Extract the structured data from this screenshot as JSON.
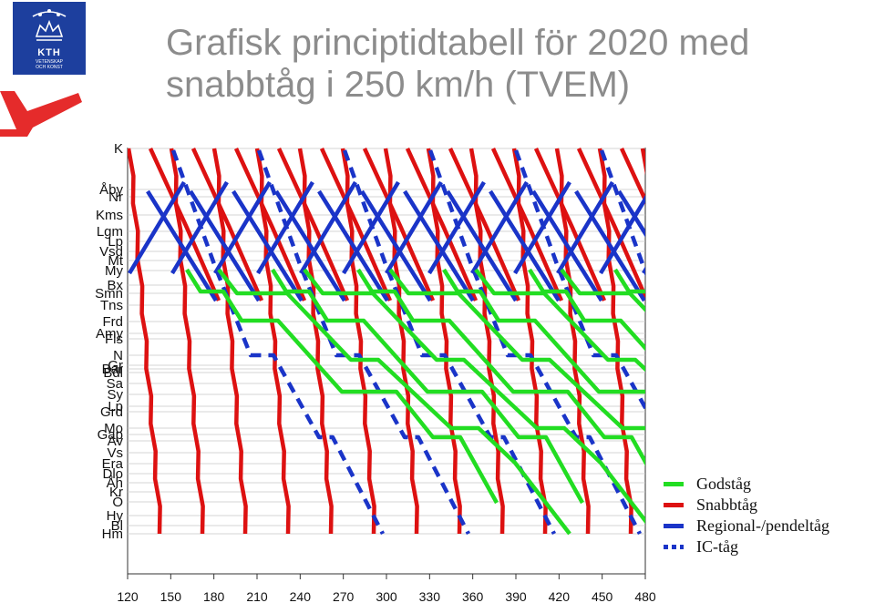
{
  "header": {
    "logo_text": "KTH",
    "logo_sub1": "VETENSKAP",
    "logo_sub2": "OCH KONST",
    "title_line1": "Grafisk principtidtabell för 2020 med",
    "title_line2": "snabbtåg i 250 km/h (TVEM)"
  },
  "colors": {
    "godstag": "#22dd22",
    "snabbtag": "#dd1111",
    "regional": "#1a34c8",
    "ic": "#1a34c8",
    "logo_blue": "#1d3f9e",
    "logo_v_red": "#e52b2b"
  },
  "chart_data": {
    "type": "line",
    "title": "Grafisk principtidtabell för 2020 med snabbtåg i 250 km/h (TVEM)",
    "x_ticks": [
      120,
      150,
      180,
      210,
      240,
      270,
      300,
      330,
      360,
      390,
      420,
      450,
      480
    ],
    "xlim": [
      120,
      480
    ],
    "stations": [
      {
        "name": "K",
        "pos": 0
      },
      {
        "name": "Åby",
        "pos": 45
      },
      {
        "name": "Nr",
        "pos": 53
      },
      {
        "name": "Kms",
        "pos": 73
      },
      {
        "name": "Lgm",
        "pos": 91
      },
      {
        "name": "Lp",
        "pos": 102
      },
      {
        "name": "Vsd",
        "pos": 113
      },
      {
        "name": "Mt",
        "pos": 123
      },
      {
        "name": "My",
        "pos": 134
      },
      {
        "name": "Bx",
        "pos": 150
      },
      {
        "name": "Smn",
        "pos": 159
      },
      {
        "name": "Tns",
        "pos": 172
      },
      {
        "name": "Frd",
        "pos": 190
      },
      {
        "name": "Amy",
        "pos": 203
      },
      {
        "name": "Fls",
        "pos": 209
      },
      {
        "name": "N",
        "pos": 227
      },
      {
        "name": "Gr",
        "pos": 238
      },
      {
        "name": "Bar",
        "pos": 242
      },
      {
        "name": "Bdl",
        "pos": 246
      },
      {
        "name": "Sa",
        "pos": 258
      },
      {
        "name": "Sy",
        "pos": 270
      },
      {
        "name": "Lp",
        "pos": 283
      },
      {
        "name": "Grd",
        "pos": 289
      },
      {
        "name": "Mo",
        "pos": 307
      },
      {
        "name": "Gap",
        "pos": 314
      },
      {
        "name": "Av",
        "pos": 321
      },
      {
        "name": "Vs",
        "pos": 334
      },
      {
        "name": "Era",
        "pos": 346
      },
      {
        "name": "Dlo",
        "pos": 357
      },
      {
        "name": "Åh",
        "pos": 367
      },
      {
        "name": "Kr",
        "pos": 377
      },
      {
        "name": "Ö",
        "pos": 388
      },
      {
        "name": "Hy",
        "pos": 403
      },
      {
        "name": "Bl",
        "pos": 414
      },
      {
        "name": "Hm",
        "pos": 423
      }
    ],
    "series": [
      {
        "name": "Godståg",
        "style": "solid",
        "color": "#22dd22"
      },
      {
        "name": "Snabbtåg",
        "style": "solid",
        "color": "#dd1111"
      },
      {
        "name": "Regional-/pendeltåg",
        "style": "solid",
        "color": "#1a34c8"
      },
      {
        "name": "IC-tåg",
        "style": "dotted",
        "color": "#1a34c8"
      }
    ],
    "legend": "right",
    "grid": true
  }
}
